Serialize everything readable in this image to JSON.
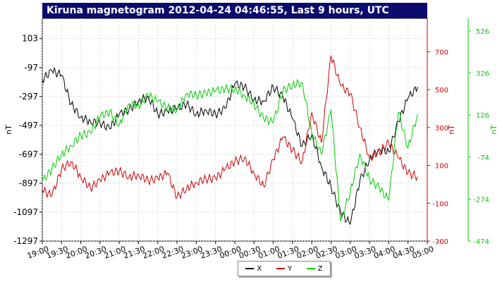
{
  "chart_data": {
    "type": "line",
    "title": "Kiruna magnetogram 2012-04-24 04:46:55, Last 9 hours, UTC",
    "x_ticks": [
      "19:00",
      "19:30",
      "20:00",
      "20:30",
      "21:00",
      "21:30",
      "22:00",
      "22:30",
      "23:00",
      "23:30",
      "00:00",
      "00:30",
      "01:00",
      "01:30",
      "02:00",
      "02:30",
      "03:00",
      "03:30",
      "04:00",
      "04:30",
      "05:00"
    ],
    "axes": {
      "left": {
        "label": "nT",
        "ticks": [
          "103",
          "-97",
          "-297",
          "-497",
          "-697",
          "-897",
          "-1097",
          "-1297"
        ],
        "range": [
          -1297,
          243
        ],
        "color": "#000000"
      },
      "right1": {
        "label": "nT",
        "ticks": [
          "700",
          "500",
          "300",
          "100",
          "-100",
          "-300"
        ],
        "range": [
          -300,
          877
        ],
        "color": "#cc0000"
      },
      "right2": {
        "label": "nT",
        "ticks": [
          "526",
          "326",
          "126",
          "-74",
          "-274",
          "-474"
        ],
        "range": [
          -474,
          586
        ],
        "color": "#00cc00"
      }
    },
    "series": [
      {
        "name": "X",
        "color": "#000000",
        "axis": "left",
        "t": [
          19.0,
          19.25,
          19.5,
          19.75,
          20.0,
          20.25,
          20.5,
          20.75,
          21.0,
          21.25,
          21.5,
          21.75,
          22.0,
          22.25,
          22.5,
          22.75,
          23.0,
          23.25,
          23.5,
          23.75,
          24.0,
          24.25,
          24.5,
          24.75,
          25.0,
          25.25,
          25.5,
          25.75,
          26.0,
          26.25,
          26.5,
          26.75,
          27.0,
          27.25,
          27.5,
          27.75,
          28.0,
          28.25,
          28.5,
          28.75
        ],
        "values": [
          -180,
          -120,
          -150,
          -350,
          -440,
          -470,
          -480,
          -520,
          -420,
          -390,
          -330,
          -300,
          -420,
          -400,
          -380,
          -350,
          -420,
          -390,
          -420,
          -380,
          -210,
          -230,
          -320,
          -330,
          -230,
          -300,
          -450,
          -640,
          -560,
          -780,
          -920,
          -1100,
          -1180,
          -880,
          -730,
          -660,
          -680,
          -470,
          -310,
          -230
        ]
      },
      {
        "name": "Y",
        "color": "#cc0000",
        "axis": "right1",
        "t": [
          19.0,
          19.25,
          19.5,
          19.75,
          20.0,
          20.25,
          20.5,
          20.75,
          21.0,
          21.25,
          21.5,
          21.75,
          22.0,
          22.25,
          22.5,
          22.75,
          23.0,
          23.25,
          23.5,
          23.75,
          24.0,
          24.25,
          24.5,
          24.75,
          25.0,
          25.25,
          25.5,
          25.75,
          26.0,
          26.25,
          26.5,
          26.75,
          27.0,
          27.25,
          27.5,
          27.75,
          28.0,
          28.25,
          28.5,
          28.75
        ],
        "values": [
          -30,
          -60,
          80,
          120,
          40,
          -20,
          20,
          60,
          70,
          40,
          50,
          20,
          30,
          60,
          -70,
          -20,
          10,
          30,
          30,
          80,
          120,
          140,
          60,
          -10,
          130,
          250,
          180,
          120,
          380,
          220,
          680,
          520,
          480,
          300,
          140,
          170,
          220,
          140,
          60,
          40
        ]
      },
      {
        "name": "Z",
        "color": "#00cc00",
        "axis": "right2",
        "t": [
          19.0,
          19.25,
          19.5,
          19.75,
          20.0,
          20.25,
          20.5,
          20.75,
          21.0,
          21.25,
          21.5,
          21.75,
          22.0,
          22.25,
          22.5,
          22.75,
          23.0,
          23.25,
          23.5,
          23.75,
          24.0,
          24.25,
          24.5,
          24.75,
          25.0,
          25.25,
          25.5,
          25.75,
          26.0,
          26.25,
          26.5,
          26.75,
          27.0,
          27.25,
          27.5,
          27.75,
          28.0,
          28.25,
          28.5,
          28.75
        ],
        "values": [
          -190,
          -130,
          -60,
          -20,
          30,
          40,
          120,
          140,
          80,
          180,
          170,
          220,
          190,
          160,
          150,
          230,
          220,
          230,
          240,
          250,
          250,
          220,
          180,
          110,
          90,
          240,
          270,
          280,
          40,
          -60,
          150,
          -380,
          -240,
          -60,
          -180,
          -220,
          -280,
          140,
          -30,
          130
        ]
      }
    ],
    "legend_position": "bottom-center",
    "grid": true
  }
}
